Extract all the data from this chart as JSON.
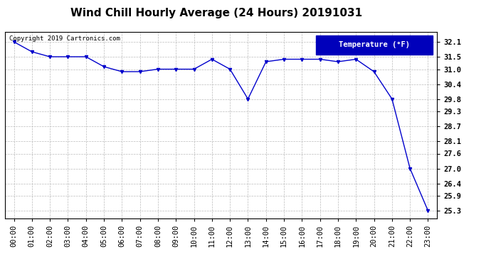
{
  "title": "Wind Chill Hourly Average (24 Hours) 20191031",
  "copyright_text": "Copyright 2019 Cartronics.com",
  "legend_label": "Temperature (°F)",
  "x_labels": [
    "00:00",
    "01:00",
    "02:00",
    "03:00",
    "04:00",
    "05:00",
    "06:00",
    "07:00",
    "08:00",
    "09:00",
    "10:00",
    "11:00",
    "12:00",
    "13:00",
    "14:00",
    "15:00",
    "16:00",
    "17:00",
    "18:00",
    "19:00",
    "20:00",
    "21:00",
    "22:00",
    "23:00"
  ],
  "y_values": [
    32.1,
    31.7,
    31.5,
    31.5,
    31.5,
    31.1,
    30.9,
    30.9,
    31.0,
    31.0,
    31.0,
    31.4,
    31.0,
    29.8,
    31.3,
    31.4,
    31.4,
    31.4,
    31.3,
    31.4,
    30.9,
    29.8,
    27.0,
    25.3
  ],
  "ylim_min": 25.0,
  "ylim_max": 32.5,
  "yticks": [
    25.3,
    25.9,
    26.4,
    27.0,
    27.6,
    28.1,
    28.7,
    29.3,
    29.8,
    30.4,
    31.0,
    31.5,
    32.1
  ],
  "line_color": "#0000cc",
  "marker_color": "#0000cc",
  "background_color": "#ffffff",
  "plot_bg_color": "#ffffff",
  "grid_color": "#bbbbbb",
  "legend_bg": "#0000bb",
  "legend_fg": "#ffffff",
  "title_fontsize": 11,
  "tick_fontsize": 7.5,
  "copyright_fontsize": 6.5
}
